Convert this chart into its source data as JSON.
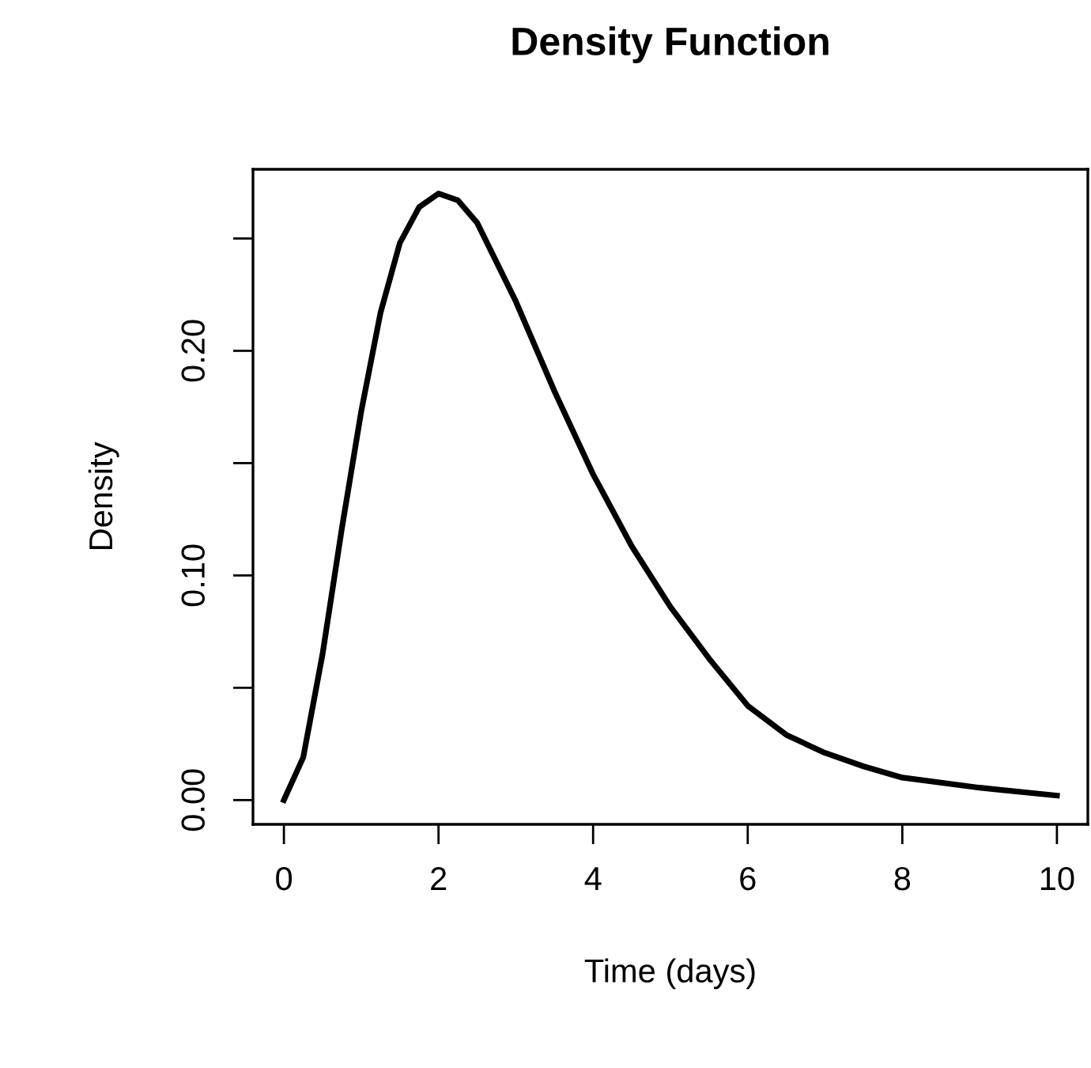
{
  "chart_data": {
    "type": "line",
    "title": "Density Function",
    "xlabel": "Time (days)",
    "ylabel": "Density",
    "x": [
      0,
      0.25,
      0.5,
      0.75,
      1,
      1.25,
      1.5,
      1.75,
      2,
      2.25,
      2.5,
      3,
      3.5,
      4,
      4.5,
      5,
      5.5,
      6,
      6.5,
      7,
      7.5,
      8,
      9,
      10
    ],
    "series": [
      {
        "color": "#000000",
        "values": [
          0,
          0.019,
          0.065,
          0.121,
          0.173,
          0.217,
          0.248,
          0.264,
          0.27,
          0.267,
          0.257,
          0.222,
          0.182,
          0.145,
          0.113,
          0.086,
          0.063,
          0.042,
          0.029,
          0.021,
          0.015,
          0.01,
          0.0055,
          0.002
        ]
      }
    ],
    "xlim": [
      -0.4,
      10.4
    ],
    "ylim": [
      -0.0108,
      0.2808
    ],
    "xticks": [
      0,
      2,
      4,
      6,
      8,
      10
    ],
    "yticks": [
      {
        "value": 0,
        "label": "0.00"
      },
      {
        "value": 0.05,
        "label": null
      },
      {
        "value": 0.1,
        "label": "0.10"
      },
      {
        "value": 0.15,
        "label": null
      },
      {
        "value": 0.2,
        "label": "0.20"
      },
      {
        "value": 0.25,
        "label": null
      }
    ],
    "grid": false,
    "legend": false,
    "marker": "none",
    "line_style": "solid"
  }
}
